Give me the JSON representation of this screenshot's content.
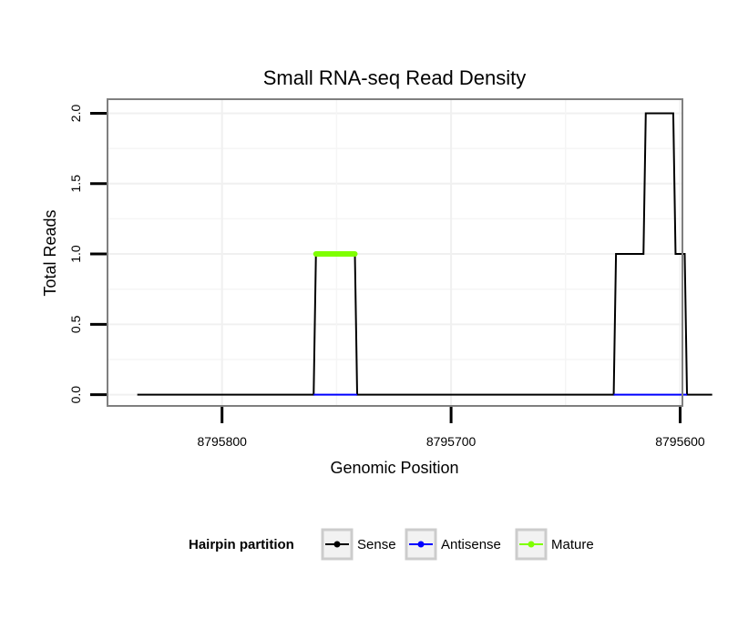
{
  "chart_data": {
    "type": "line",
    "title": "Small RNA-seq Read Density",
    "xlabel": "Genomic Position",
    "ylabel": "Total Reads",
    "x_reversed": true,
    "xlim": [
      8795850,
      8795599
    ],
    "ylim": [
      -0.08,
      2.1
    ],
    "x_ticks": [
      8795800,
      8795700,
      8795600
    ],
    "x_tick_labels": [
      "8795800",
      "8795700",
      "8795600"
    ],
    "y_ticks": [
      0.0,
      0.5,
      1.0,
      1.5,
      2.0
    ],
    "y_tick_labels": [
      "0.0",
      "0.5",
      "1.0",
      "1.5",
      "2.0"
    ],
    "grid": true,
    "legend": {
      "title": "Hairpin partition",
      "placement": "bottom",
      "entries": [
        {
          "name": "Sense",
          "color": "#000000"
        },
        {
          "name": "Antisense",
          "color": "#0000ff"
        },
        {
          "name": "Mature",
          "color": "#7fff00"
        }
      ]
    },
    "series": [
      {
        "name": "Sense",
        "color": "#000000",
        "x": [
          8795837,
          8795760,
          8795759,
          8795742,
          8795741,
          8795629,
          8795628,
          8795616,
          8795615,
          8795603,
          8795602,
          8795598,
          8795597,
          8795586
        ],
        "y": [
          0,
          0,
          1,
          1,
          0,
          0,
          1,
          1,
          2,
          2,
          1,
          1,
          0,
          0
        ]
      },
      {
        "name": "Antisense",
        "color": "#0000ff",
        "x": [
          8795760,
          8795741,
          null,
          8795629,
          8795597
        ],
        "y": [
          0,
          0,
          null,
          0,
          0
        ]
      },
      {
        "name": "Mature",
        "color": "#7fff00",
        "x": [
          8795759,
          8795742
        ],
        "y": [
          1,
          1
        ]
      }
    ]
  }
}
